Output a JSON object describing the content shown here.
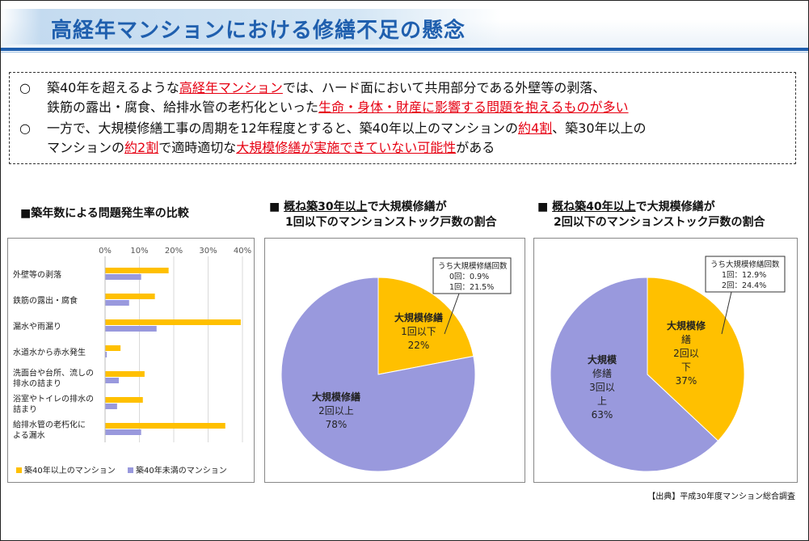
{
  "title": "高経年マンションにおける修繕不足の懸念",
  "summary": {
    "bullet_mark": "○",
    "line1": [
      {
        "text": "築40年を超えるような",
        "hl": false
      },
      {
        "text": "高経年マンション",
        "hl": true
      },
      {
        "text": "では、ハード面において共用部分である外壁等の剥落、",
        "hl": false
      }
    ],
    "line2": [
      {
        "text": "鉄筋の露出・腐食、給排水管の老朽化といった",
        "hl": false
      },
      {
        "text": "生命・身体・財産に影響する問題を抱えるものが多い",
        "hl": true
      }
    ],
    "line3": [
      {
        "text": "一方で、大規模修繕工事の周期を12年程度とすると、築40年以上のマンションの",
        "hl": false
      },
      {
        "text": "約4割",
        "hl": true
      },
      {
        "text": "、築30年以上の",
        "hl": false
      }
    ],
    "line4": [
      {
        "text": "マンションの",
        "hl": false
      },
      {
        "text": "約2割",
        "hl": true
      },
      {
        "text": "で適時適切な",
        "hl": false
      },
      {
        "text": "大規模修繕が実施できていない可能性",
        "hl": true
      },
      {
        "text": "がある",
        "hl": false
      }
    ]
  },
  "chart_data": [
    {
      "type": "bar",
      "orientation": "horizontal",
      "title": "■築年数による問題発生率の比較",
      "categories": [
        "外壁等の剥落",
        "鉄筋の露出・腐食",
        "漏水や雨漏り",
        "水道水から赤水発生",
        "洗面台や台所、流しの排水の詰まり",
        "浴室やトイレの排水の詰まり",
        "給排水管の老朽化による漏水"
      ],
      "category_lines": [
        [
          "外壁等の剥落"
        ],
        [
          "鉄筋の露出・腐食"
        ],
        [
          "漏水や雨漏り"
        ],
        [
          "水道水から赤水発生"
        ],
        [
          "洗面台や台所、流しの",
          "排水の詰まり"
        ],
        [
          "浴室やトイレの排水の",
          "詰まり"
        ],
        [
          "給排水管の老朽化に",
          "よる漏水"
        ]
      ],
      "series": [
        {
          "name": "築40年以上のマンション",
          "color": "#ffc000",
          "values": [
            18.5,
            14.5,
            39.5,
            4.5,
            11.5,
            11.0,
            35.0
          ]
        },
        {
          "name": "築40年未満のマンション",
          "color": "#9999dd",
          "values": [
            10.5,
            7.0,
            15.0,
            0.5,
            4.0,
            3.5,
            10.5
          ]
        }
      ],
      "xlim": [
        0,
        40
      ],
      "ticks": [
        0,
        10,
        20,
        30,
        40
      ],
      "tick_labels": [
        "0%",
        "10%",
        "20%",
        "30%",
        "40%"
      ],
      "grid": true,
      "legend": "bottom"
    },
    {
      "type": "pie",
      "title_lines": [
        "■ 概ね築30年以上で大規模修繕が",
        "1回以下のマンションストック戸数の割合"
      ],
      "title_underline": "概ね築30年以上",
      "slices": [
        {
          "label_lines": [
            "大規模修繕",
            "1回以下",
            "22%"
          ],
          "value": 22,
          "color": "#ffc000"
        },
        {
          "label_lines": [
            "大規模修繕",
            "2回以上",
            "78%"
          ],
          "value": 78,
          "color": "#9999dd"
        }
      ],
      "callout": [
        "うち大規模修繕回数",
        "0回：0.9%",
        "1回：21.5%"
      ]
    },
    {
      "type": "pie",
      "title_lines": [
        "■ 概ね築40年以上で大規模修繕が",
        "2回以下のマンションストック戸数の割合"
      ],
      "title_underline": "概ね築40年以上",
      "slices": [
        {
          "label_lines": [
            "大規模修",
            "繕",
            "2回以",
            "下",
            "37%"
          ],
          "value": 37,
          "color": "#ffc000"
        },
        {
          "label_lines": [
            "大規模",
            "修繕",
            "3回以",
            "上",
            "63%"
          ],
          "value": 63,
          "color": "#9999dd"
        }
      ],
      "callout": [
        "うち大規模修繕回数",
        "1回：12.9%",
        "2回：24.4%"
      ]
    }
  ],
  "source": "【出典】平成30年度マンション総合調査"
}
